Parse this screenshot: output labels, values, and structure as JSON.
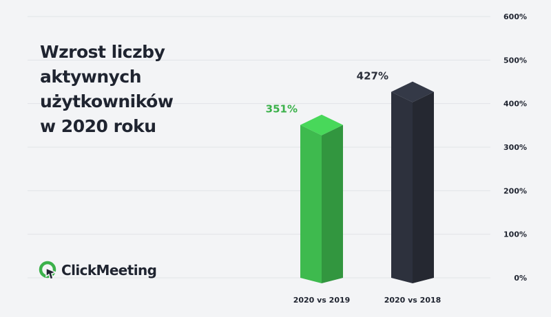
{
  "title_lines": [
    "Wzrost liczby",
    "aktywnych",
    "użytkowników",
    "w 2020 roku"
  ],
  "logo_text": "ClickMeeting",
  "colors": {
    "background": "#f3f4f6",
    "text": "#1f2430",
    "green": "#3bb14a",
    "dark": "#2b2f3a",
    "brand_green": "#3bb14a"
  },
  "chart_data": {
    "type": "bar",
    "title": "Wzrost liczby aktywnych użytkowników w 2020 roku",
    "categories": [
      "2020 vs 2019",
      "2020 vs 2018"
    ],
    "values": [
      351,
      427
    ],
    "value_labels": [
      "351%",
      "427%"
    ],
    "bar_colors": [
      "#3bb14a",
      "#2b2f3a"
    ],
    "label_colors": [
      "#3bb14a",
      "#2b2f3a"
    ],
    "yticks": [
      "0%",
      "100%",
      "200%",
      "300%",
      "400%",
      "500%",
      "600%"
    ],
    "ylim": [
      0,
      600
    ],
    "y_axis_side": "right",
    "grid": true,
    "style": "3d-column"
  }
}
